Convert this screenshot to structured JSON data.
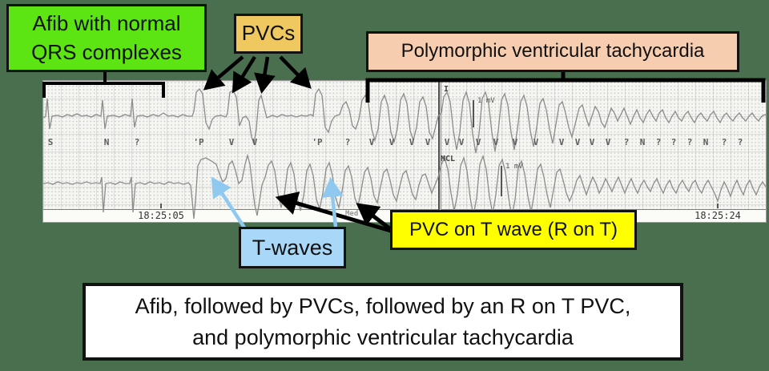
{
  "colors": {
    "background": "#4A6F4F",
    "afib_box": "#5CE512",
    "pvcs_box": "#F0C860",
    "poly_vt_box": "#F7CDB0",
    "t_waves_box": "#A8D7F7",
    "r_on_t_box": "#FFFF00",
    "summary_box": "#FFFFFF",
    "blue_arrow": "#8FC9F0",
    "black_arrow": "#000000",
    "ecg_paper": "#F5F5F2",
    "ecg_trace": "#8C8C8C"
  },
  "callouts": {
    "afib": {
      "lines": [
        "Afib with normal",
        "QRS complexes"
      ]
    },
    "pvcs": {
      "label": "PVCs"
    },
    "poly_vt": {
      "label": "Polymorphic ventricular tachycardia"
    },
    "t_waves": {
      "label": "T-waves"
    },
    "r_on_t": {
      "label": "PVC on T wave (R on T)"
    },
    "summary": {
      "lines": [
        "Afib, followed by PVCs, followed by an R on T PVC,",
        "and polymorphic ventricular tachycardia"
      ]
    }
  },
  "ecg_strip": {
    "left_panel": {
      "timestamp": "18:25:05",
      "beat_labels": [
        "S",
        "N",
        "?",
        "'P",
        "V",
        "V",
        "'P",
        "?",
        "V",
        "V",
        "V",
        "V"
      ]
    },
    "right_panel": {
      "lead_top": "I",
      "lead_bottom": "MCL",
      "calibration_label": "1 mV",
      "timestamp": "18:25:24",
      "beat_labels": [
        "V",
        "V",
        "V",
        "V",
        "V",
        "V",
        "V",
        "V",
        "V",
        "V",
        "?",
        "N",
        "?",
        "?",
        "?",
        "N",
        "?",
        "?"
      ]
    },
    "partial_text": "Med Dos"
  }
}
